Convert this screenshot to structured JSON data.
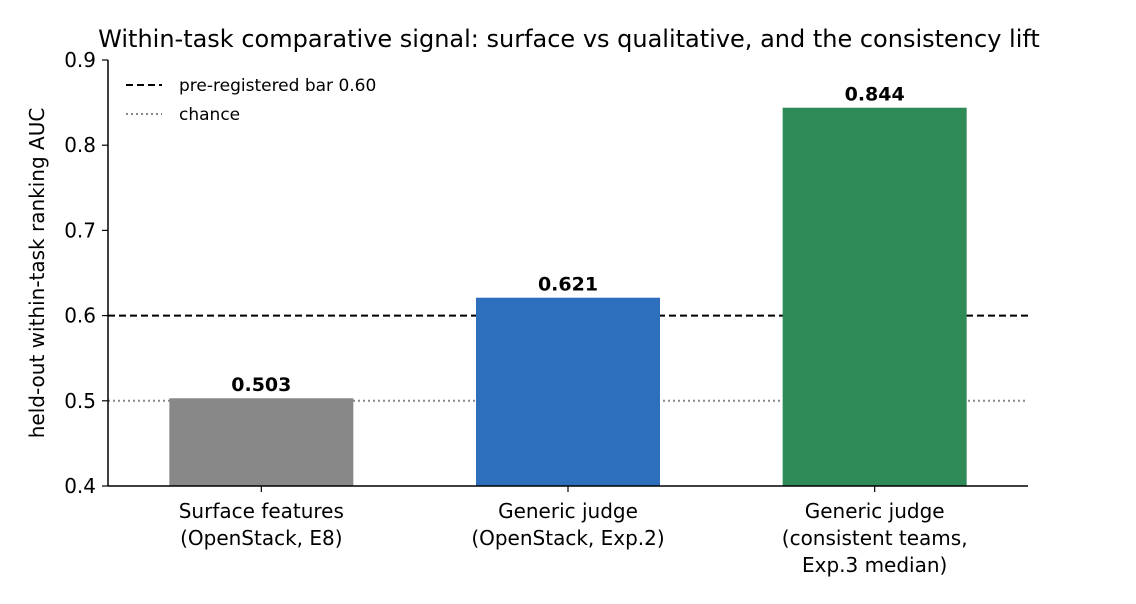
{
  "chart_data": {
    "type": "bar",
    "title": "Within-task comparative signal: surface vs qualitative, and the consistency lift",
    "xlabel": "",
    "ylabel": "held-out within-task ranking AUC",
    "ylim": [
      0.4,
      0.9
    ],
    "yticks": [
      "0.4",
      "0.5",
      "0.6",
      "0.7",
      "0.8",
      "0.9"
    ],
    "yticks_values": [
      0.4,
      0.5,
      0.6,
      0.7,
      0.8,
      0.9
    ],
    "categories": [
      [
        "Surface features",
        "(OpenStack, E8)"
      ],
      [
        "Generic judge",
        "(OpenStack, Exp.2)"
      ],
      [
        "Generic judge",
        "(consistent teams,",
        "Exp.3 median)"
      ]
    ],
    "values": [
      0.503,
      0.621,
      0.844
    ],
    "value_labels": [
      "0.503",
      "0.621",
      "0.844"
    ],
    "colors": [
      "#888888",
      "#2d6fbd",
      "#2e8b57"
    ],
    "reference_lines": [
      {
        "label": "pre-registered bar 0.60",
        "y": 0.6,
        "style": "dashed",
        "color": "#000000"
      },
      {
        "label": "chance",
        "y": 0.5,
        "style": "dotted",
        "color": "#888888"
      }
    ],
    "legend_position": "top-left",
    "grid": false
  }
}
